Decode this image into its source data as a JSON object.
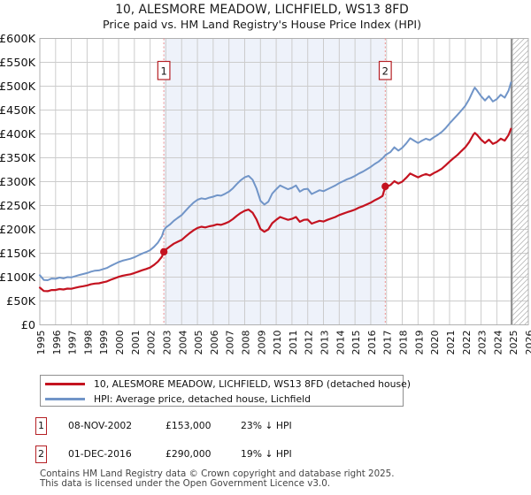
{
  "title": "10, ALESMORE MEADOW, LICHFIELD, WS13 8FD",
  "subtitle": "Price paid vs. HM Land Registry's House Price Index (HPI)",
  "chart_data": {
    "type": "line",
    "grid": true,
    "legend_position": "bottom",
    "xlim": [
      1995,
      2026
    ],
    "ylim_k": [
      0,
      600
    ],
    "y_unit": "GBP thousands",
    "x_ticks": [
      1995,
      1996,
      1997,
      1998,
      1999,
      2000,
      2001,
      2002,
      2003,
      2004,
      2005,
      2006,
      2007,
      2008,
      2009,
      2010,
      2011,
      2012,
      2013,
      2014,
      2015,
      2016,
      2017,
      2018,
      2019,
      2020,
      2021,
      2022,
      2023,
      2024,
      2025,
      2026
    ],
    "y_ticks": [
      {
        "value": 600,
        "label": "£600K"
      },
      {
        "value": 550,
        "label": "£550K"
      },
      {
        "value": 500,
        "label": "£500K"
      },
      {
        "value": 450,
        "label": "£450K"
      },
      {
        "value": 400,
        "label": "£400K"
      },
      {
        "value": 350,
        "label": "£350K"
      },
      {
        "value": 300,
        "label": "£300K"
      },
      {
        "value": 250,
        "label": "£250K"
      },
      {
        "value": 200,
        "label": "£200K"
      },
      {
        "value": 150,
        "label": "£150K"
      },
      {
        "value": 100,
        "label": "£100K"
      },
      {
        "value": 50,
        "label": "£50K"
      },
      {
        "value": 0,
        "label": "£0"
      }
    ],
    "shade_span": [
      2002.87,
      2016.92
    ],
    "hatch_span": [
      2024.93,
      2026
    ],
    "colors": {
      "grid": "#cccccc",
      "border": "#b0b0b0",
      "shade": "#eef2fa",
      "dashed": "#ef8f8f",
      "marker_box_border": "#b52025",
      "hatch": "#bbbbbb",
      "hatch_edge": "#808080",
      "property": "#c41320",
      "hpi": "#7195c8"
    },
    "markers": [
      {
        "num": "1",
        "date": "08-NOV-2002",
        "price": "£153,000",
        "vs_hpi": "23% ↓ HPI",
        "year": 2002.87,
        "price_k": 153
      },
      {
        "num": "2",
        "date": "01-DEC-2016",
        "price": "£290,000",
        "vs_hpi": "19% ↓ HPI",
        "year": 2016.92,
        "price_k": 290
      }
    ],
    "series": [
      {
        "name": "10, ALESMORE MEADOW, LICHFIELD, WS13 8FD (detached house)",
        "color": "#c41320",
        "width": 2.2,
        "points": [
          [
            1995,
            78
          ],
          [
            1995.25,
            71
          ],
          [
            1995.5,
            70.5
          ],
          [
            1995.75,
            73
          ],
          [
            1996,
            73
          ],
          [
            1996.25,
            75
          ],
          [
            1996.5,
            74
          ],
          [
            1996.75,
            76
          ],
          [
            1997,
            75.5
          ],
          [
            1997.25,
            77.5
          ],
          [
            1997.5,
            79.5
          ],
          [
            1997.75,
            81
          ],
          [
            1998,
            82.5
          ],
          [
            1998.25,
            85
          ],
          [
            1998.5,
            86.5
          ],
          [
            1998.75,
            87
          ],
          [
            1999,
            89
          ],
          [
            1999.25,
            91
          ],
          [
            1999.5,
            94.5
          ],
          [
            1999.75,
            97.5
          ],
          [
            2000,
            100.5
          ],
          [
            2000.25,
            103
          ],
          [
            2000.5,
            104.5
          ],
          [
            2000.75,
            106
          ],
          [
            2001,
            108.5
          ],
          [
            2001.25,
            111.5
          ],
          [
            2001.5,
            114.5
          ],
          [
            2001.75,
            117
          ],
          [
            2002,
            120
          ],
          [
            2002.25,
            125.5
          ],
          [
            2002.5,
            132.5
          ],
          [
            2002.75,
            143
          ],
          [
            2002.87,
            153
          ],
          [
            2003,
            158
          ],
          [
            2003.25,
            164
          ],
          [
            2003.5,
            170
          ],
          [
            2003.75,
            174
          ],
          [
            2004,
            178
          ],
          [
            2004.25,
            185
          ],
          [
            2004.5,
            192
          ],
          [
            2004.75,
            198
          ],
          [
            2005,
            203
          ],
          [
            2005.25,
            205.5
          ],
          [
            2005.5,
            204
          ],
          [
            2005.75,
            206.5
          ],
          [
            2006,
            208
          ],
          [
            2006.25,
            210.5
          ],
          [
            2006.5,
            209.5
          ],
          [
            2006.75,
            212.5
          ],
          [
            2007,
            216
          ],
          [
            2007.25,
            221.5
          ],
          [
            2007.5,
            228.5
          ],
          [
            2007.75,
            234.5
          ],
          [
            2008,
            239
          ],
          [
            2008.25,
            241.5
          ],
          [
            2008.5,
            235
          ],
          [
            2008.75,
            221
          ],
          [
            2009,
            201
          ],
          [
            2009.25,
            195
          ],
          [
            2009.5,
            200
          ],
          [
            2009.75,
            213
          ],
          [
            2010,
            220
          ],
          [
            2010.25,
            226
          ],
          [
            2010.5,
            223
          ],
          [
            2010.75,
            220
          ],
          [
            2011,
            222
          ],
          [
            2011.25,
            226
          ],
          [
            2011.5,
            216
          ],
          [
            2011.75,
            220
          ],
          [
            2012,
            220.5
          ],
          [
            2012.25,
            212
          ],
          [
            2012.5,
            215
          ],
          [
            2012.75,
            218
          ],
          [
            2013,
            216.5
          ],
          [
            2013.25,
            220
          ],
          [
            2013.5,
            223
          ],
          [
            2013.75,
            226
          ],
          [
            2014,
            230
          ],
          [
            2014.25,
            233
          ],
          [
            2014.5,
            236
          ],
          [
            2014.75,
            238.5
          ],
          [
            2015,
            241.5
          ],
          [
            2015.25,
            245.5
          ],
          [
            2015.5,
            248.5
          ],
          [
            2015.75,
            252.5
          ],
          [
            2016,
            256
          ],
          [
            2016.25,
            261
          ],
          [
            2016.5,
            265
          ],
          [
            2016.75,
            270
          ],
          [
            2016.92,
            290
          ],
          [
            2017,
            289
          ],
          [
            2017.25,
            293
          ],
          [
            2017.5,
            301
          ],
          [
            2017.75,
            296
          ],
          [
            2018,
            300
          ],
          [
            2018.25,
            308
          ],
          [
            2018.5,
            317
          ],
          [
            2018.75,
            313
          ],
          [
            2019,
            309
          ],
          [
            2019.25,
            313
          ],
          [
            2019.5,
            316
          ],
          [
            2019.75,
            313
          ],
          [
            2020,
            318
          ],
          [
            2020.25,
            322
          ],
          [
            2020.5,
            327
          ],
          [
            2020.75,
            334
          ],
          [
            2021,
            342
          ],
          [
            2021.25,
            349
          ],
          [
            2021.5,
            356
          ],
          [
            2021.75,
            364
          ],
          [
            2022,
            372
          ],
          [
            2022.25,
            383
          ],
          [
            2022.5,
            398
          ],
          [
            2022.6,
            402
          ],
          [
            2022.75,
            398
          ],
          [
            2023,
            388
          ],
          [
            2023.25,
            381
          ],
          [
            2023.5,
            388
          ],
          [
            2023.75,
            379
          ],
          [
            2024,
            383
          ],
          [
            2024.25,
            390
          ],
          [
            2024.5,
            386
          ],
          [
            2024.75,
            398
          ],
          [
            2024.9,
            411
          ]
        ]
      },
      {
        "name": "HPI: Average price, detached house, Lichfield",
        "color": "#7195c8",
        "width": 2,
        "points": [
          [
            1995,
            104
          ],
          [
            1995.25,
            94
          ],
          [
            1995.5,
            93.5
          ],
          [
            1995.75,
            97
          ],
          [
            1996,
            96.5
          ],
          [
            1996.25,
            99
          ],
          [
            1996.5,
            97.5
          ],
          [
            1996.75,
            100
          ],
          [
            1997,
            99.5
          ],
          [
            1997.25,
            102
          ],
          [
            1997.5,
            104.5
          ],
          [
            1997.75,
            106.5
          ],
          [
            1998,
            108.5
          ],
          [
            1998.25,
            111.5
          ],
          [
            1998.5,
            113.5
          ],
          [
            1998.75,
            114
          ],
          [
            1999,
            116.5
          ],
          [
            1999.25,
            119
          ],
          [
            1999.5,
            123.5
          ],
          [
            1999.75,
            127.5
          ],
          [
            2000,
            131.5
          ],
          [
            2000.25,
            134.5
          ],
          [
            2000.5,
            136.5
          ],
          [
            2000.75,
            138.5
          ],
          [
            2001,
            141.5
          ],
          [
            2001.25,
            145.5
          ],
          [
            2001.5,
            149.5
          ],
          [
            2001.75,
            152.5
          ],
          [
            2002,
            156.5
          ],
          [
            2002.25,
            163.5
          ],
          [
            2002.5,
            172.5
          ],
          [
            2002.75,
            186
          ],
          [
            2002.87,
            198
          ],
          [
            2003,
            204
          ],
          [
            2003.25,
            210
          ],
          [
            2003.5,
            218
          ],
          [
            2003.75,
            224
          ],
          [
            2004,
            230
          ],
          [
            2004.25,
            239
          ],
          [
            2004.5,
            248
          ],
          [
            2004.75,
            256
          ],
          [
            2005,
            262
          ],
          [
            2005.25,
            265
          ],
          [
            2005.5,
            263.5
          ],
          [
            2005.75,
            266.5
          ],
          [
            2006,
            268.5
          ],
          [
            2006.25,
            271.5
          ],
          [
            2006.5,
            270.5
          ],
          [
            2006.75,
            274.5
          ],
          [
            2007,
            279
          ],
          [
            2007.25,
            286
          ],
          [
            2007.5,
            295
          ],
          [
            2007.75,
            303
          ],
          [
            2008,
            309
          ],
          [
            2008.25,
            312
          ],
          [
            2008.5,
            304
          ],
          [
            2008.75,
            286
          ],
          [
            2009,
            260
          ],
          [
            2009.25,
            252
          ],
          [
            2009.5,
            258
          ],
          [
            2009.75,
            275
          ],
          [
            2010,
            284
          ],
          [
            2010.25,
            292
          ],
          [
            2010.5,
            288
          ],
          [
            2010.75,
            284
          ],
          [
            2011,
            287
          ],
          [
            2011.25,
            292
          ],
          [
            2011.5,
            279
          ],
          [
            2011.75,
            284
          ],
          [
            2012,
            285
          ],
          [
            2012.25,
            274
          ],
          [
            2012.5,
            278
          ],
          [
            2012.75,
            282
          ],
          [
            2013,
            280
          ],
          [
            2013.25,
            284
          ],
          [
            2013.5,
            288
          ],
          [
            2013.75,
            292
          ],
          [
            2014,
            297
          ],
          [
            2014.25,
            301
          ],
          [
            2014.5,
            305
          ],
          [
            2014.75,
            308
          ],
          [
            2015,
            312
          ],
          [
            2015.25,
            317
          ],
          [
            2015.5,
            321
          ],
          [
            2015.75,
            326
          ],
          [
            2016,
            331
          ],
          [
            2016.25,
            337
          ],
          [
            2016.5,
            342
          ],
          [
            2016.75,
            349
          ],
          [
            2016.92,
            355
          ],
          [
            2017,
            357
          ],
          [
            2017.25,
            362
          ],
          [
            2017.5,
            372
          ],
          [
            2017.75,
            365
          ],
          [
            2018,
            371
          ],
          [
            2018.25,
            380
          ],
          [
            2018.5,
            391
          ],
          [
            2018.75,
            386
          ],
          [
            2019,
            381
          ],
          [
            2019.25,
            386
          ],
          [
            2019.5,
            390
          ],
          [
            2019.75,
            387
          ],
          [
            2020,
            393
          ],
          [
            2020.25,
            398
          ],
          [
            2020.5,
            404
          ],
          [
            2020.75,
            412
          ],
          [
            2021,
            422
          ],
          [
            2021.25,
            431
          ],
          [
            2021.5,
            440
          ],
          [
            2021.75,
            449
          ],
          [
            2022,
            459
          ],
          [
            2022.25,
            473
          ],
          [
            2022.5,
            491
          ],
          [
            2022.6,
            497
          ],
          [
            2022.75,
            491
          ],
          [
            2023,
            479
          ],
          [
            2023.25,
            470
          ],
          [
            2023.5,
            479
          ],
          [
            2023.75,
            468
          ],
          [
            2024,
            473
          ],
          [
            2024.25,
            482
          ],
          [
            2024.5,
            476
          ],
          [
            2024.75,
            491
          ],
          [
            2024.9,
            508
          ]
        ]
      }
    ]
  },
  "legend": {
    "items": [
      {
        "label": "10, ALESMORE MEADOW, LICHFIELD, WS13 8FD (detached house)"
      },
      {
        "label": "HPI: Average price, detached house, Lichfield"
      }
    ]
  },
  "footer": {
    "line1": "Contains HM Land Registry data © Crown copyright and database right 2025.",
    "line2": "This data is licensed under the Open Government Licence v3.0."
  }
}
